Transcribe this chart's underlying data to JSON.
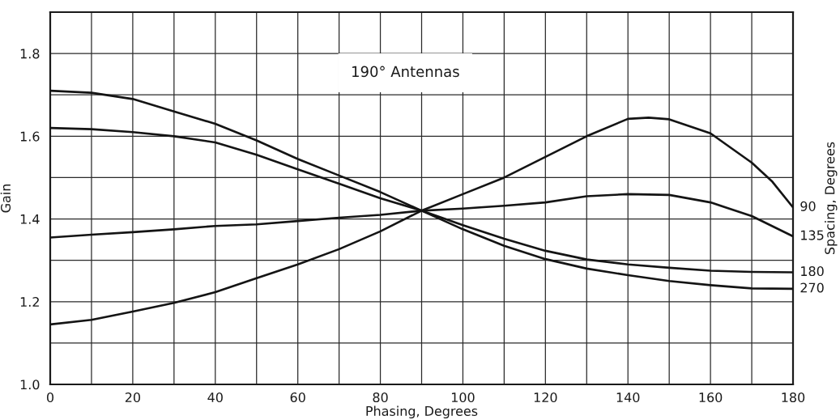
{
  "chart_data": {
    "type": "line",
    "title": "190° Antennas",
    "xlabel": "Phasing, Degrees",
    "ylabel": "Gain",
    "y2label": "Spacing, Degrees",
    "xlim": [
      0,
      180
    ],
    "ylim": [
      1.0,
      1.9
    ],
    "xticks": [
      0,
      {
        "value": 10,
        "label": null
      },
      20,
      {
        "value": 30,
        "label": null
      },
      40,
      {
        "value": 50,
        "label": null
      },
      60,
      {
        "value": 70,
        "label": null
      },
      80,
      {
        "value": 90,
        "label": null
      },
      100,
      {
        "value": 110,
        "label": null
      },
      120,
      {
        "value": 130,
        "label": null
      },
      140,
      {
        "value": 150,
        "label": null
      },
      160,
      {
        "value": 170,
        "label": null
      },
      180
    ],
    "yticks": [
      {
        "value": 1.0,
        "label": "1.0"
      },
      {
        "value": 1.1,
        "label": null
      },
      1.2,
      {
        "value": 1.3,
        "label": null
      },
      1.4,
      {
        "value": 1.5,
        "label": null
      },
      1.6,
      {
        "value": 1.7,
        "label": null
      },
      1.8
    ],
    "grid": true,
    "legend": false,
    "series": [
      {
        "name": "90",
        "color": "#141414",
        "x": [
          0,
          10,
          20,
          30,
          40,
          50,
          60,
          70,
          80,
          90,
          100,
          110,
          120,
          130,
          140,
          145,
          150,
          160,
          170,
          175,
          180
        ],
        "values": [
          1.145,
          1.156,
          1.176,
          1.197,
          1.223,
          1.257,
          1.29,
          1.327,
          1.37,
          1.42,
          1.46,
          1.5,
          1.55,
          1.6,
          1.642,
          1.645,
          1.641,
          1.607,
          1.536,
          1.49,
          1.428
        ]
      },
      {
        "name": "135",
        "color": "#141414",
        "x": [
          0,
          10,
          20,
          30,
          40,
          50,
          60,
          70,
          80,
          90,
          100,
          110,
          120,
          130,
          140,
          150,
          160,
          170,
          180
        ],
        "values": [
          1.355,
          1.362,
          1.368,
          1.375,
          1.383,
          1.387,
          1.395,
          1.403,
          1.41,
          1.42,
          1.425,
          1.432,
          1.44,
          1.455,
          1.46,
          1.458,
          1.44,
          1.407,
          1.358
        ]
      },
      {
        "name": "180",
        "color": "#141414",
        "x": [
          0,
          10,
          20,
          30,
          40,
          50,
          60,
          70,
          80,
          90,
          100,
          110,
          120,
          130,
          140,
          150,
          160,
          170,
          180
        ],
        "values": [
          1.62,
          1.617,
          1.61,
          1.6,
          1.585,
          1.555,
          1.52,
          1.485,
          1.45,
          1.42,
          1.385,
          1.352,
          1.323,
          1.302,
          1.29,
          1.282,
          1.275,
          1.272,
          1.271
        ]
      },
      {
        "name": "270",
        "color": "#141414",
        "x": [
          0,
          10,
          20,
          30,
          40,
          50,
          60,
          70,
          80,
          90,
          100,
          110,
          120,
          130,
          140,
          150,
          160,
          170,
          180
        ],
        "values": [
          1.71,
          1.705,
          1.69,
          1.66,
          1.63,
          1.59,
          1.545,
          1.505,
          1.465,
          1.42,
          1.375,
          1.335,
          1.303,
          1.28,
          1.264,
          1.25,
          1.24,
          1.232,
          1.231
        ]
      }
    ]
  }
}
